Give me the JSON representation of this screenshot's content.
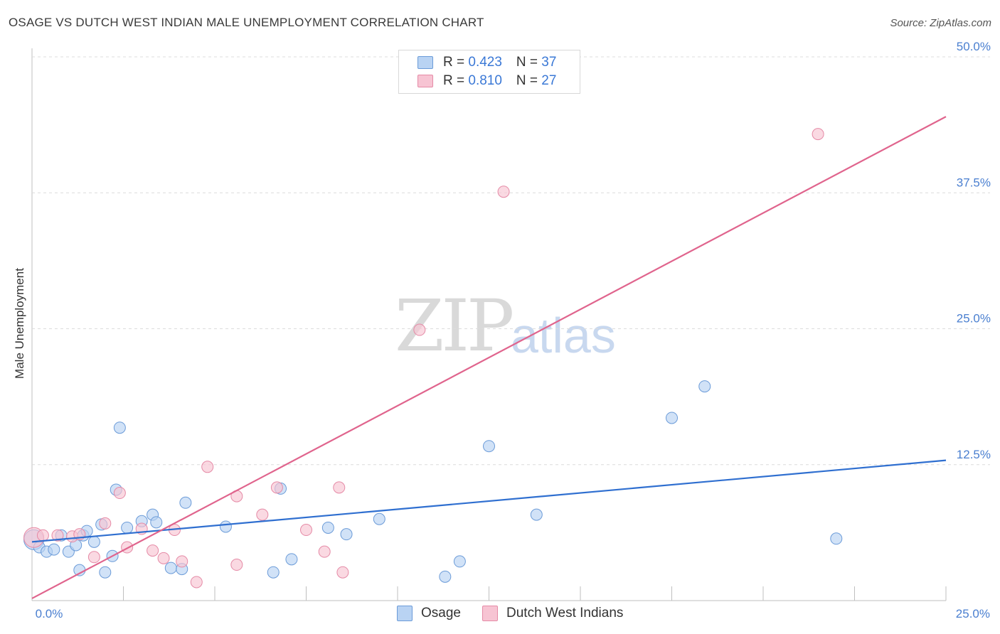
{
  "header": {
    "title": "OSAGE VS DUTCH WEST INDIAN MALE UNEMPLOYMENT CORRELATION CHART",
    "source": "Source: ZipAtlas.com"
  },
  "watermark": {
    "zip": "ZIP",
    "atlas": "atlas"
  },
  "legend_top": {
    "rows": [
      {
        "r_label": "R = ",
        "r_value": "0.423",
        "n_label": "N = ",
        "n_value": "37"
      },
      {
        "r_label": "R = ",
        "r_value": "0.810",
        "n_label": "N = ",
        "n_value": "27"
      }
    ]
  },
  "legend_bottom": {
    "series1": "Osage",
    "series2": "Dutch West Indians"
  },
  "colors": {
    "osage_fill": "#b9d3f3",
    "osage_stroke": "#6b9bd8",
    "osage_line": "#2f6fd0",
    "dwi_fill": "#f7c4d3",
    "dwi_stroke": "#e58aa6",
    "dwi_line": "#e0648d",
    "grid": "#dcdcdc",
    "tick_text": "#4a7fd0"
  },
  "chart_data": {
    "type": "scatter",
    "title": "OSAGE VS DUTCH WEST INDIAN MALE UNEMPLOYMENT CORRELATION CHART",
    "xlabel": "",
    "ylabel": "Male Unemployment",
    "xlim": [
      0,
      25
    ],
    "ylim": [
      0,
      50
    ],
    "x_tick_labels": [
      "0.0%",
      "25.0%"
    ],
    "y_ticks": [
      12.5,
      25.0,
      37.5,
      50.0
    ],
    "y_tick_labels": [
      "12.5%",
      "25.0%",
      "37.5%",
      "50.0%"
    ],
    "grid": true,
    "series": [
      {
        "name": "Osage",
        "r": 0.423,
        "n": 37,
        "trend": {
          "x": [
            0,
            25
          ],
          "y": [
            5.4,
            12.9
          ]
        },
        "points": [
          [
            0.05,
            5.6
          ],
          [
            0.2,
            4.9
          ],
          [
            0.4,
            4.5
          ],
          [
            0.6,
            4.7
          ],
          [
            0.8,
            6.0
          ],
          [
            1.0,
            4.5
          ],
          [
            1.2,
            5.1
          ],
          [
            1.3,
            2.8
          ],
          [
            1.4,
            6.0
          ],
          [
            1.5,
            6.4
          ],
          [
            1.7,
            5.4
          ],
          [
            1.9,
            7.0
          ],
          [
            2.0,
            2.6
          ],
          [
            2.2,
            4.1
          ],
          [
            2.3,
            10.2
          ],
          [
            2.4,
            15.9
          ],
          [
            2.6,
            6.7
          ],
          [
            3.0,
            7.3
          ],
          [
            3.3,
            7.9
          ],
          [
            3.4,
            7.2
          ],
          [
            3.8,
            3.0
          ],
          [
            4.1,
            2.9
          ],
          [
            4.2,
            9.0
          ],
          [
            5.3,
            6.8
          ],
          [
            6.6,
            2.6
          ],
          [
            6.8,
            10.3
          ],
          [
            7.1,
            3.8
          ],
          [
            8.1,
            6.7
          ],
          [
            8.6,
            6.1
          ],
          [
            9.5,
            7.5
          ],
          [
            11.3,
            2.2
          ],
          [
            11.7,
            3.6
          ],
          [
            12.5,
            14.2
          ],
          [
            13.8,
            7.9
          ],
          [
            17.5,
            16.8
          ],
          [
            18.4,
            19.7
          ],
          [
            22.0,
            5.7
          ]
        ]
      },
      {
        "name": "Dutch West Indians",
        "r": 0.81,
        "n": 27,
        "trend": {
          "x": [
            0,
            25
          ],
          "y": [
            0.2,
            44.5
          ]
        },
        "points": [
          [
            0.05,
            5.8
          ],
          [
            0.3,
            6.0
          ],
          [
            0.7,
            6.0
          ],
          [
            1.1,
            5.9
          ],
          [
            1.3,
            6.1
          ],
          [
            1.7,
            4.0
          ],
          [
            2.0,
            7.1
          ],
          [
            2.4,
            9.9
          ],
          [
            2.6,
            4.9
          ],
          [
            3.0,
            6.6
          ],
          [
            3.3,
            4.6
          ],
          [
            3.6,
            3.9
          ],
          [
            3.9,
            6.5
          ],
          [
            4.1,
            3.6
          ],
          [
            4.5,
            1.7
          ],
          [
            4.8,
            12.3
          ],
          [
            5.6,
            3.3
          ],
          [
            5.6,
            9.6
          ],
          [
            6.3,
            7.9
          ],
          [
            6.7,
            10.4
          ],
          [
            7.5,
            6.5
          ],
          [
            8.0,
            4.5
          ],
          [
            8.4,
            10.4
          ],
          [
            8.5,
            2.6
          ],
          [
            10.6,
            24.9
          ],
          [
            12.9,
            37.6
          ],
          [
            21.5,
            42.9
          ]
        ]
      }
    ]
  }
}
